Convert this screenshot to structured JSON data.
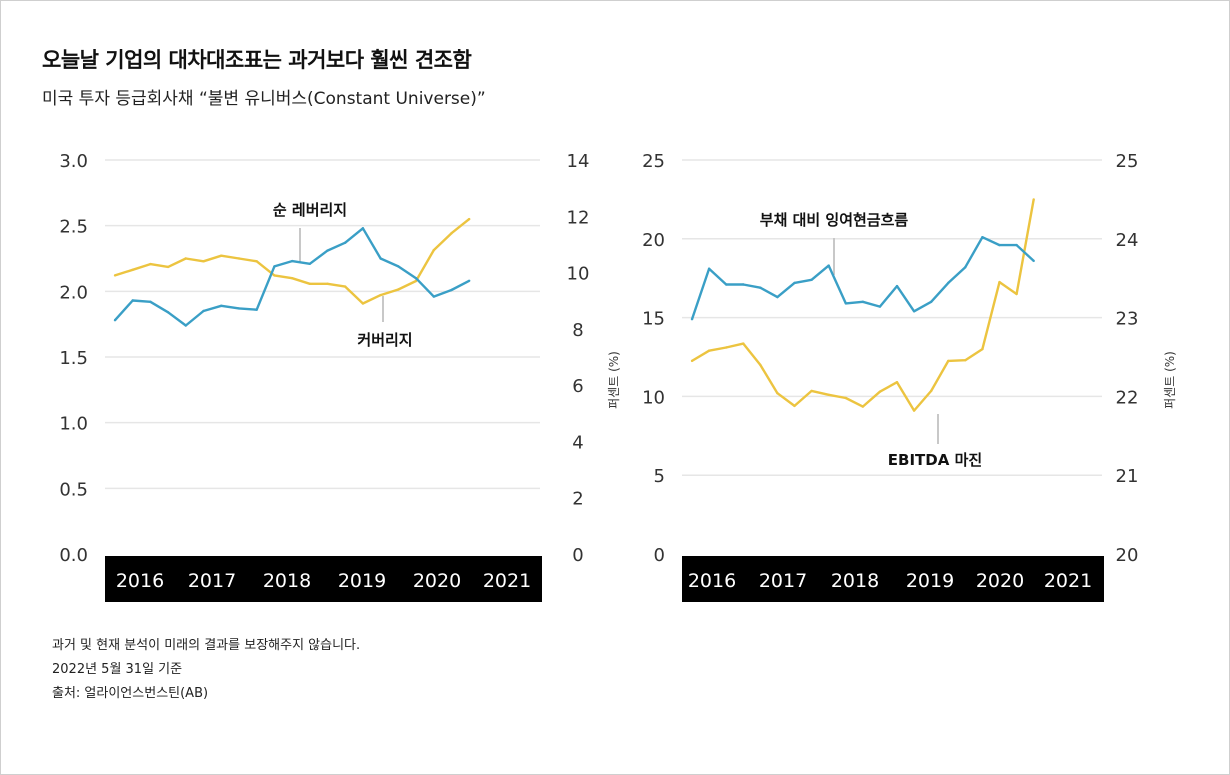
{
  "header": {
    "title": "오늘날 기업의 대차대조표는 과거보다 훨씬 견조함",
    "subtitle": "미국 투자 등급회사채 “불변 유니버스(Constant Universe)”"
  },
  "footer": {
    "lines": [
      "과거 및 현재 분석이 미래의 결과를 보장해주지 않습니다.",
      "2022년 5월 31일 기준",
      "출처: 얼라이언스번스틴(AB)"
    ]
  },
  "colors": {
    "blue": "#3a9fc6",
    "yellow": "#ecc440",
    "grid": "#e6e6e6",
    "band": "#000000"
  },
  "chart_data": [
    {
      "type": "line",
      "categories": [
        "2016",
        "2017",
        "2018",
        "2019",
        "2020",
        "2021"
      ],
      "x_range": [
        2016,
        2022
      ],
      "y_left": {
        "ticks": [
          "3.0",
          "2.5",
          "2.0",
          "1.5",
          "1.0",
          "0.5",
          "0.0"
        ],
        "lim": [
          0,
          3
        ]
      },
      "y_right": {
        "ticks": [
          "14",
          "12",
          "10",
          "8",
          "6",
          "4",
          "2",
          "0"
        ],
        "lim": [
          0,
          14
        ],
        "label": "퍼센트 (%)"
      },
      "grid": true,
      "series": [
        {
          "name": "순 레버리지",
          "axis": "left",
          "color": "#3a9fc6",
          "x": [
            2016.0,
            2016.25,
            2016.5,
            2016.75,
            2017.0,
            2017.25,
            2017.5,
            2017.75,
            2018.0,
            2018.25,
            2018.5,
            2018.75,
            2019.0,
            2019.25,
            2019.5,
            2019.75,
            2020.0,
            2020.25,
            2020.5,
            2020.75,
            2021.0
          ],
          "values": [
            1.78,
            1.93,
            1.92,
            1.84,
            1.74,
            1.85,
            1.89,
            1.87,
            1.86,
            2.19,
            2.23,
            2.21,
            2.31,
            2.37,
            2.48,
            2.25,
            2.19,
            2.1,
            1.96,
            2.01,
            2.08
          ]
        },
        {
          "name": "커버리지",
          "axis": "right",
          "color": "#ecc440",
          "x": [
            2016.0,
            2016.25,
            2016.5,
            2016.75,
            2017.0,
            2017.25,
            2017.5,
            2017.75,
            2018.0,
            2018.25,
            2018.5,
            2018.75,
            2019.0,
            2019.25,
            2019.5,
            2019.75,
            2020.0,
            2020.25,
            2020.5,
            2020.75,
            2021.0
          ],
          "values": [
            9.9,
            10.1,
            10.3,
            10.2,
            10.5,
            10.4,
            10.6,
            10.5,
            10.4,
            9.9,
            9.8,
            9.6,
            9.6,
            9.5,
            8.9,
            9.2,
            9.4,
            9.7,
            10.8,
            11.4,
            11.9
          ]
        }
      ],
      "annotations": [
        {
          "text": "순 레버리지",
          "series": "순 레버리지"
        },
        {
          "text": "커버리지",
          "series": "커버리지"
        }
      ]
    },
    {
      "type": "line",
      "categories": [
        "2016",
        "2017",
        "2018",
        "2019",
        "2020",
        "2021"
      ],
      "x_range": [
        2016,
        2022
      ],
      "y_left": {
        "ticks": [
          "25",
          "20",
          "15",
          "10",
          "5",
          "0"
        ],
        "lim": [
          0,
          25
        ]
      },
      "y_right": {
        "ticks": [
          "25",
          "24",
          "23",
          "22",
          "21",
          "20"
        ],
        "lim": [
          20,
          25
        ],
        "label": "퍼센트 (%)"
      },
      "grid": true,
      "series": [
        {
          "name": "부채 대비 잉여현금흐름",
          "axis": "left",
          "color": "#3a9fc6",
          "x": [
            2016.0,
            2016.25,
            2016.5,
            2016.75,
            2017.0,
            2017.25,
            2017.5,
            2017.75,
            2018.0,
            2018.25,
            2018.5,
            2018.75,
            2019.0,
            2019.25,
            2019.5,
            2019.75,
            2020.0,
            2020.25,
            2020.5,
            2020.75,
            2021.0
          ],
          "values": [
            14.9,
            18.1,
            17.1,
            17.1,
            16.9,
            16.3,
            17.2,
            17.4,
            18.3,
            15.9,
            16.0,
            15.7,
            17.0,
            15.4,
            16.0,
            17.2,
            18.2,
            20.1,
            19.6,
            19.6,
            18.6
          ]
        },
        {
          "name": "EBITDA 마진",
          "axis": "right",
          "color": "#ecc440",
          "x": [
            2016.0,
            2016.25,
            2016.5,
            2016.75,
            2017.0,
            2017.25,
            2017.5,
            2017.75,
            2018.0,
            2018.25,
            2018.5,
            2018.75,
            2019.0,
            2019.25,
            2019.5,
            2019.75,
            2020.0,
            2020.25,
            2020.5,
            2020.75,
            2021.0
          ],
          "values": [
            22.45,
            22.58,
            22.62,
            22.67,
            22.4,
            22.04,
            21.88,
            22.07,
            22.02,
            21.98,
            21.87,
            22.06,
            22.18,
            21.82,
            22.07,
            22.45,
            22.46,
            22.6,
            23.45,
            23.3,
            24.5
          ]
        }
      ],
      "annotations": [
        {
          "text": "부채 대비 잉여현금흐름",
          "series": "부채 대비 잉여현금흐름"
        },
        {
          "text": "EBITDA 마진",
          "series": "EBITDA 마진"
        }
      ]
    }
  ]
}
